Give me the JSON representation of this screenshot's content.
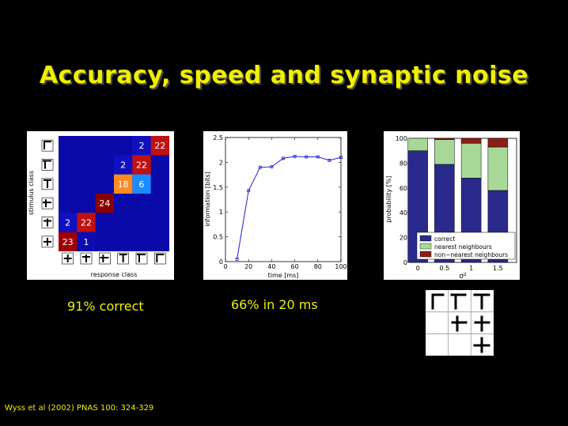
{
  "slide": {
    "title": "Accuracy, speed and synaptic noise",
    "caption_left": "91% correct",
    "caption_mid": "66% in 20 ms",
    "citation": "Wyss et al (2002) PNAS 100: 324-329"
  },
  "chart_data": [
    {
      "type": "heatmap",
      "ylabel": "stimulus class",
      "xlabel": "response class",
      "cells": [
        {
          "row": 0,
          "col": 4,
          "value": "2",
          "color": "#1010c0"
        },
        {
          "row": 0,
          "col": 5,
          "value": "22",
          "color": "#c01010"
        },
        {
          "row": 1,
          "col": 3,
          "value": "2",
          "color": "#1010c0"
        },
        {
          "row": 1,
          "col": 4,
          "value": "22",
          "color": "#c01010"
        },
        {
          "row": 2,
          "col": 3,
          "value": "18",
          "color": "#ff8a20"
        },
        {
          "row": 2,
          "col": 4,
          "value": "6",
          "color": "#1a8cff"
        },
        {
          "row": 3,
          "col": 2,
          "value": "24",
          "color": "#880000"
        },
        {
          "row": 4,
          "col": 0,
          "value": "2",
          "color": "#1010c0"
        },
        {
          "row": 4,
          "col": 1,
          "value": "22",
          "color": "#c01010"
        },
        {
          "row": 5,
          "col": 0,
          "value": "23",
          "color": "#a00000"
        },
        {
          "row": 5,
          "col": 1,
          "value": "1",
          "color": "#0c0cb0"
        }
      ],
      "background_color": "#0a0aa8"
    },
    {
      "type": "line",
      "xlabel": "time [ms]",
      "ylabel": "information [bits]",
      "xlim": [
        0,
        100
      ],
      "ylim": [
        0,
        2.5
      ],
      "xticks": [
        "0",
        "20",
        "40",
        "60",
        "80",
        "100"
      ],
      "yticks": [
        "0",
        "0.5",
        "1",
        "1.5",
        "2",
        "2.5"
      ],
      "x": [
        10,
        20,
        30,
        40,
        50,
        60,
        70,
        80,
        90,
        100
      ],
      "y": [
        0.05,
        1.43,
        1.9,
        1.91,
        2.08,
        2.12,
        2.11,
        2.11,
        2.04,
        2.1
      ],
      "color": "#2020d0"
    },
    {
      "type": "bar",
      "stacked": true,
      "xlabel": "σ²",
      "ylabel": "probability [%]",
      "ylim": [
        0,
        100
      ],
      "xticks": [
        "0",
        "0.5",
        "1",
        "1.5"
      ],
      "yticks": [
        "0",
        "20",
        "40",
        "60",
        "80",
        "100"
      ],
      "categories": [
        "0",
        "0.5",
        "1",
        "1.5"
      ],
      "series": [
        {
          "name": "correct",
          "color": "#2a2a8c",
          "values": [
            90,
            79,
            68,
            58
          ]
        },
        {
          "name": "nearest neighbours",
          "color": "#a8d898",
          "values": [
            10,
            20,
            28,
            35
          ]
        },
        {
          "name": "non−nearest neighbours",
          "color": "#8c1e18",
          "values": [
            0,
            1,
            4,
            7
          ]
        }
      ],
      "legend_position": "bottom-right"
    }
  ]
}
